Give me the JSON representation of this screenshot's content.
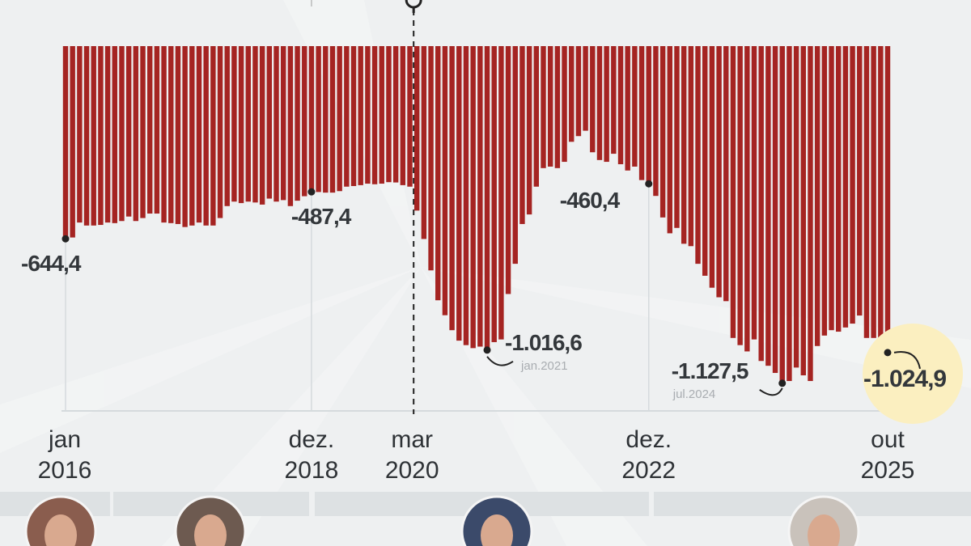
{
  "chart_data": {
    "type": "bar",
    "values": [
      -644.4,
      -640,
      -590,
      -600,
      -600,
      -598,
      -590,
      -592,
      -585,
      -570,
      -585,
      -575,
      -560,
      -560,
      -590,
      -592,
      -595,
      -605,
      -600,
      -590,
      -600,
      -600,
      -575,
      -535,
      -520,
      -525,
      -520,
      -523,
      -530,
      -510,
      -520,
      -515,
      -535,
      -517,
      -502,
      -487.4,
      -488,
      -490,
      -490,
      -485,
      -470,
      -468,
      -465,
      -460,
      -462,
      -460,
      -455,
      -456,
      -465,
      -470,
      -550,
      -645,
      -750,
      -850,
      -900,
      -950,
      -985,
      -1000,
      -1010,
      -1005,
      -1016.6,
      -990,
      -981,
      -829,
      -728,
      -595,
      -563,
      -470,
      -408,
      -403,
      -408,
      -387,
      -320,
      -301,
      -283,
      -355,
      -381,
      -387,
      -360,
      -395,
      -416,
      -403,
      -448,
      -460.4,
      -501,
      -573,
      -626,
      -608,
      -661,
      -669,
      -728,
      -768,
      -808,
      -840,
      -853,
      -976,
      -1000,
      -1021,
      -981,
      -1053,
      -1069,
      -1093,
      -1127.5,
      -1120,
      -1075,
      -1101,
      -1120,
      -1003,
      -968,
      -950,
      -955,
      -941,
      -928,
      -901,
      -976,
      -976,
      -1026,
      -1024.9
    ],
    "ylim": [
      -1220,
      0
    ],
    "bar_color": "#a52422",
    "highlight_color": "#fbefc0",
    "grid": true,
    "x_ticks": [
      {
        "index": 0,
        "line1": "jan",
        "line2": "2016"
      },
      {
        "index": 35,
        "line1": "dez.",
        "line2": "2018"
      },
      {
        "index": 50,
        "line1": "mar",
        "line2": "2020"
      },
      {
        "index": 83,
        "line1": "dez.",
        "line2": "2022"
      },
      {
        "index": 117,
        "line1": "out",
        "line2": "2025"
      }
    ],
    "annotations": [
      {
        "index": 0,
        "label": "-644,4"
      },
      {
        "index": 35,
        "label": "-487,4"
      },
      {
        "index": 60,
        "label": "-1.016,6",
        "sublabel": "jan.2021"
      },
      {
        "index": 83,
        "label": "-460,4"
      },
      {
        "index": 102,
        "label": "-1.127,5",
        "sublabel": "jul.2024"
      },
      {
        "index": 117,
        "label": "-1.024,9"
      }
    ],
    "event_marker": {
      "index": 50,
      "icon": "virus-icon"
    }
  }
}
